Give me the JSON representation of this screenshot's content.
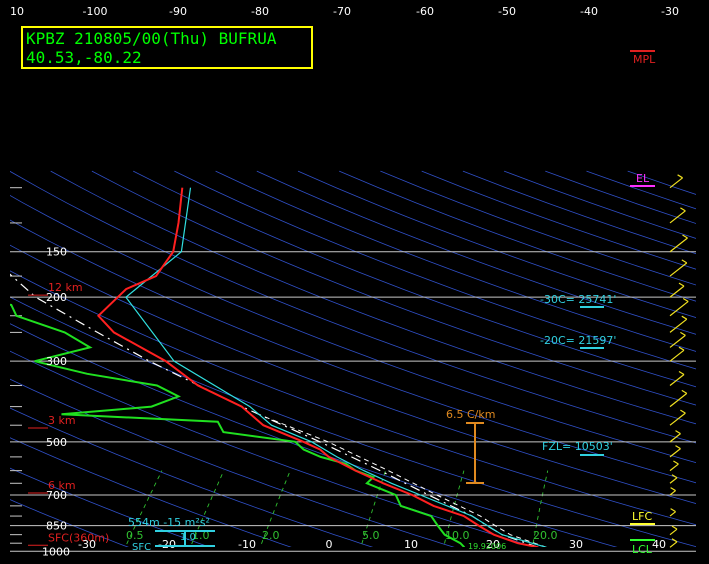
{
  "chart_data": {
    "type": "line",
    "skewt": true,
    "header": {
      "line1": "KPBZ 210805/00(Thu) BUFRUA",
      "line2": "40.53,-80.22",
      "border_color": "#ffff00",
      "text_color": "#00ff00"
    },
    "top_axis": {
      "ticks": [
        {
          "label": "10",
          "px": 17
        },
        {
          "label": "-100",
          "px": 95
        },
        {
          "label": "-90",
          "px": 178
        },
        {
          "label": "-80",
          "px": 260
        },
        {
          "label": "-70",
          "px": 342
        },
        {
          "label": "-60",
          "px": 425
        },
        {
          "label": "-50",
          "px": 507
        },
        {
          "label": "-40",
          "px": 589
        },
        {
          "label": "-30",
          "px": 670
        }
      ]
    },
    "bottom_axis": {
      "ticks": [
        {
          "label": "-30",
          "px": 87
        },
        {
          "label": "-20",
          "px": 167
        },
        {
          "label": "-10",
          "px": 247
        },
        {
          "label": "0",
          "px": 329
        },
        {
          "label": "10",
          "px": 411
        },
        {
          "label": "20",
          "px": 493
        },
        {
          "label": "30",
          "px": 576
        },
        {
          "label": "40",
          "px": 659
        }
      ]
    },
    "isobars": [
      150,
      200,
      300,
      500,
      700,
      850,
      1000
    ],
    "isobar_labels": [
      "150",
      "200",
      "300",
      "500",
      "700",
      "850",
      "1000"
    ],
    "height_labels": [
      "12 km",
      "6 km",
      "3 km",
      "SFC(360m)"
    ],
    "mixing_ratio_labels": [
      "0.5",
      "1.0",
      "2.0",
      "5.0",
      "10.0",
      "20.0"
    ],
    "temperature": [
      [
        100,
        -64
      ],
      [
        125,
        -60
      ],
      [
        150,
        -57
      ],
      [
        175,
        -56
      ],
      [
        190,
        -58
      ],
      [
        200,
        -58
      ],
      [
        225,
        -58
      ],
      [
        250,
        -54
      ],
      [
        300,
        -44
      ],
      [
        350,
        -37
      ],
      [
        400,
        -29
      ],
      [
        450,
        -24
      ],
      [
        500,
        -17
      ],
      [
        525,
        -14
      ],
      [
        550,
        -12
      ],
      [
        600,
        -7
      ],
      [
        650,
        -2
      ],
      [
        700,
        3
      ],
      [
        750,
        7
      ],
      [
        800,
        12
      ],
      [
        850,
        15
      ],
      [
        900,
        18
      ],
      [
        950,
        22
      ],
      [
        975,
        25
      ]
    ],
    "virtual_temp": [
      [
        100,
        -63
      ],
      [
        150,
        -56
      ],
      [
        200,
        -57
      ],
      [
        300,
        -43
      ],
      [
        400,
        -28
      ],
      [
        450,
        -23
      ],
      [
        500,
        -16
      ],
      [
        550,
        -11
      ],
      [
        600,
        -6
      ],
      [
        650,
        -1
      ],
      [
        700,
        4
      ],
      [
        800,
        13
      ],
      [
        900,
        19
      ],
      [
        975,
        26
      ]
    ],
    "dewpoint": [
      [
        100,
        -94
      ],
      [
        125,
        -92
      ],
      [
        150,
        -88
      ],
      [
        175,
        -84
      ],
      [
        200,
        -80
      ],
      [
        210,
        -70
      ],
      [
        225,
        -68
      ],
      [
        250,
        -60
      ],
      [
        275,
        -55
      ],
      [
        300,
        -60
      ],
      [
        325,
        -52
      ],
      [
        350,
        -42
      ],
      [
        375,
        -38
      ],
      [
        400,
        -40
      ],
      [
        420,
        -50
      ],
      [
        440,
        -30
      ],
      [
        470,
        -28
      ],
      [
        500,
        -18
      ],
      [
        525,
        -16
      ],
      [
        550,
        -13
      ],
      [
        575,
        -9
      ],
      [
        600,
        -7
      ],
      [
        625,
        -4
      ],
      [
        650,
        -4
      ],
      [
        700,
        1
      ],
      [
        750,
        3
      ],
      [
        800,
        8
      ],
      [
        850,
        10
      ],
      [
        900,
        12
      ],
      [
        950,
        15
      ],
      [
        975,
        16
      ]
    ],
    "parcel": [
      [
        975,
        25
      ],
      [
        900,
        19
      ],
      [
        850,
        16
      ],
      [
        800,
        13
      ],
      [
        700,
        5
      ],
      [
        600,
        -4
      ],
      [
        500,
        -15
      ],
      [
        400,
        -29
      ],
      [
        300,
        -46
      ],
      [
        250,
        -56
      ],
      [
        200,
        -68
      ],
      [
        150,
        -80
      ],
      [
        120,
        -90
      ],
      [
        100,
        -98
      ]
    ],
    "parcel_virtual": [
      [
        975,
        26
      ],
      [
        900,
        20
      ],
      [
        850,
        17
      ],
      [
        800,
        14
      ],
      [
        700,
        6
      ],
      [
        600,
        -3
      ],
      [
        500,
        -14
      ],
      [
        420,
        -26
      ]
    ],
    "annotations": {
      "mpl": "MPL",
      "el": "EL",
      "lfc": "LFC",
      "lcl": "LCL",
      "lapse_rate": "6.5 C/km",
      "fzl": "FZL= 10503'",
      "minus20": "-20C= 21597'",
      "minus30": "-30C= 25741'",
      "srh": "554m -15 m²s²",
      "sfc": "SFC",
      "srh_val": "1.0",
      "surface_mix": "19.92006"
    },
    "colors": {
      "temperature": "#ff2020",
      "virtual_temp": "#30e0e0",
      "dewpoint": "#20e020",
      "parcel": "#ffffff",
      "isobar": "#c8c8c8",
      "isotherm": "#1f7a1f",
      "dry_adiabat": "#3050c8",
      "mixing_ratio": "#30c030",
      "height_marker": "#e02020",
      "wind_barb": "#f0e020",
      "lapse": "#e08a20",
      "el": "#ff30ff",
      "lfc": "#ffff30",
      "lcl": "#30ff30",
      "levels": "#30d0e0"
    }
  }
}
